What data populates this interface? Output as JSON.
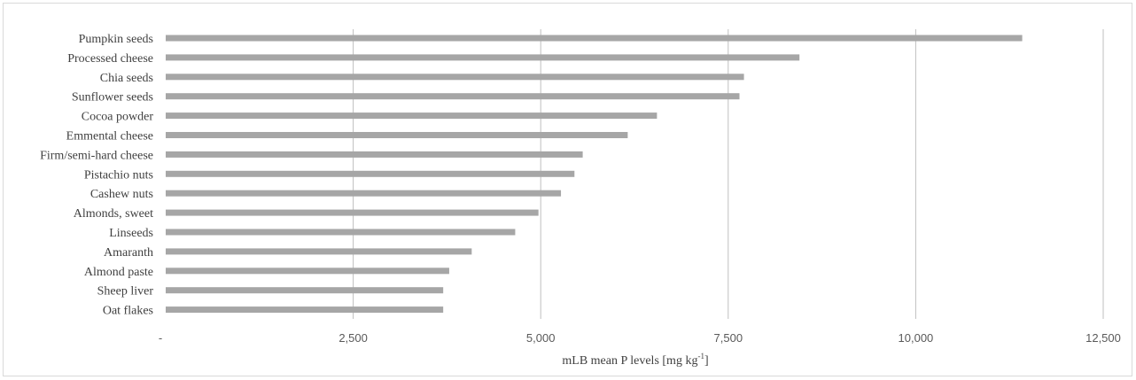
{
  "chart_data": {
    "type": "bar",
    "orientation": "horizontal",
    "categories": [
      "Pumpkin seeds",
      "Processed cheese",
      "Chia seeds",
      "Sunflower seeds",
      "Cocoa powder",
      "Emmental cheese",
      "Firm/semi-hard cheese",
      "Pistachio nuts",
      "Cashew nuts",
      "Almonds, sweet",
      "Linseeds",
      "Amaranth",
      "Almond paste",
      "Sheep liver",
      "Oat flakes"
    ],
    "values": [
      11420,
      8450,
      7710,
      7650,
      6550,
      6160,
      5560,
      5450,
      5270,
      4970,
      4660,
      4080,
      3780,
      3700,
      3700
    ],
    "xlabel_main": "mLB mean P levels [mg kg",
    "xlabel_sup": "-1",
    "xlabel_end": "]",
    "xlim": [
      0,
      12500
    ],
    "xticks": [
      0,
      2500,
      5000,
      7500,
      10000,
      12500
    ],
    "xtick_labels": [
      "-",
      "2,500",
      "5,000",
      "7,500",
      "10,000",
      "12,500"
    ],
    "grid": "vertical",
    "bar_color": "#a6a6a6",
    "grid_color": "#bfbfbf"
  }
}
